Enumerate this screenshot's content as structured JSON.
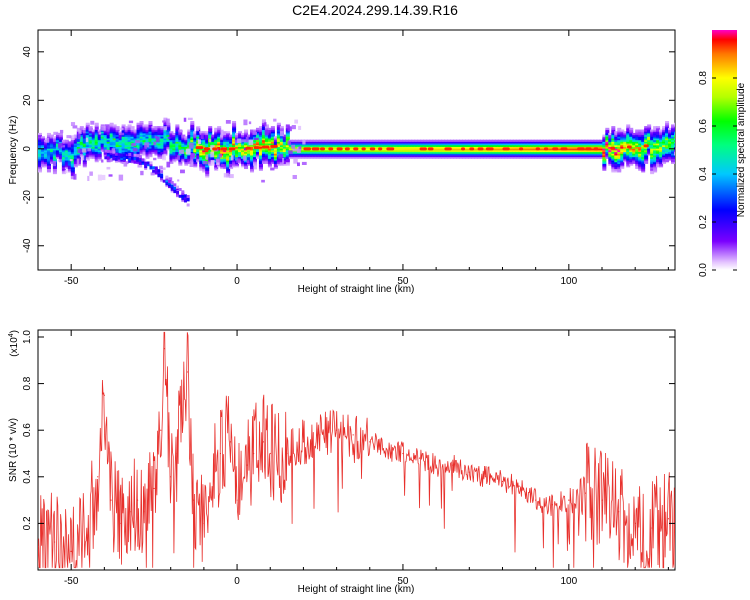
{
  "title": "C2E4.2024.299.14.39.R16",
  "chart_data": [
    {
      "type": "heatmap",
      "xlabel": "Height of straight line (km)",
      "ylabel": "Frequency (Hz)",
      "xlim": [
        -60,
        132
      ],
      "ylim": [
        -50,
        49
      ],
      "xticks": [
        -50,
        0,
        50,
        100
      ],
      "yticks": [
        -40,
        -20,
        0,
        20,
        40
      ],
      "colorbar": {
        "label": "Normalized spectral amplitude",
        "range": [
          0.0,
          1.0
        ],
        "ticks": [
          "0.0",
          "0.2",
          "0.4",
          "0.6",
          "0.8"
        ]
      },
      "ridge": {
        "description_x": [
          -60,
          -50,
          -45,
          -35,
          -25,
          -15,
          -10,
          0,
          10,
          15,
          110,
          120,
          132
        ],
        "freq": [
          0,
          -2,
          3,
          2,
          4,
          1,
          0,
          0,
          1,
          0,
          0,
          1,
          2
        ],
        "peak_amplitude": [
          0.45,
          0.5,
          0.55,
          0.55,
          0.5,
          0.6,
          0.85,
          0.85,
          0.8,
          0.75,
          0.95,
          0.8,
          0.6
        ]
      },
      "branch": {
        "x": [
          -40,
          -30,
          -25,
          -20,
          -15
        ],
        "freq": [
          -2,
          -4,
          -8,
          -15,
          -21
        ],
        "amplitude": 0.3
      }
    },
    {
      "type": "line",
      "xlabel": "Height of straight line (km)",
      "ylabel": "SNR (10 * v/v)",
      "scale_label": "(x10",
      "scale_exp": "4",
      "scale_close": ")",
      "xlim": [
        -60,
        132
      ],
      "ylim": [
        0,
        1.03
      ],
      "xticks": [
        -50,
        0,
        50,
        100
      ],
      "yticks": [
        0.2,
        0.4,
        0.6,
        0.8,
        1.0
      ],
      "series": [
        {
          "color": "#e8302c",
          "x": [
            -60,
            -55,
            -50,
            -45,
            -42,
            -40,
            -38,
            -35,
            -32,
            -30,
            -28,
            -25,
            -23,
            -22,
            -20,
            -18,
            -15,
            -13,
            -10,
            -7,
            -5,
            -2,
            0,
            3,
            5,
            8,
            10,
            15,
            20,
            25,
            30,
            35,
            40,
            45,
            50,
            55,
            60,
            65,
            70,
            75,
            80,
            85,
            90,
            95,
            100,
            105,
            110,
            115,
            120,
            125,
            130,
            132
          ],
          "y": [
            0.1,
            0.12,
            0.08,
            0.15,
            0.4,
            0.75,
            0.3,
            0.2,
            0.25,
            0.3,
            0.25,
            0.35,
            0.6,
            0.95,
            0.4,
            0.5,
            0.85,
            0.3,
            0.2,
            0.45,
            0.5,
            0.55,
            0.3,
            0.45,
            0.5,
            0.55,
            0.5,
            0.5,
            0.55,
            0.58,
            0.6,
            0.58,
            0.55,
            0.52,
            0.5,
            0.48,
            0.45,
            0.45,
            0.42,
            0.4,
            0.38,
            0.36,
            0.3,
            0.28,
            0.3,
            0.33,
            0.3,
            0.25,
            0.2,
            0.18,
            0.22,
            0.15
          ]
        }
      ]
    }
  ]
}
